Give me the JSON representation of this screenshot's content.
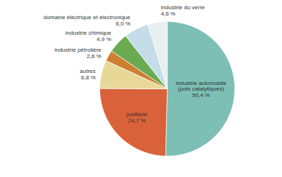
{
  "chart_data": {
    "type": "pie",
    "categories": [
      "industrie automobile\n(pots catalytiques)",
      "joaillerie",
      "autres",
      "industrie pétrolière",
      "industrie chimique",
      "domaine électrique et électronique",
      "industrie du verre"
    ],
    "values": [
      50.4,
      24.7,
      6.8,
      2.6,
      4.9,
      6.0,
      4.6
    ],
    "value_labels": [
      "50,4 %",
      "24,7 %",
      "6,8 %",
      "2,6 %",
      "4,9 %",
      "6,0 %",
      "4,6 %"
    ],
    "colors": [
      "#7dbfb5",
      "#d9623a",
      "#e8d898",
      "#cc8030",
      "#6aaa50",
      "#c5dde8",
      "#e8efef"
    ],
    "data_labels": true
  }
}
